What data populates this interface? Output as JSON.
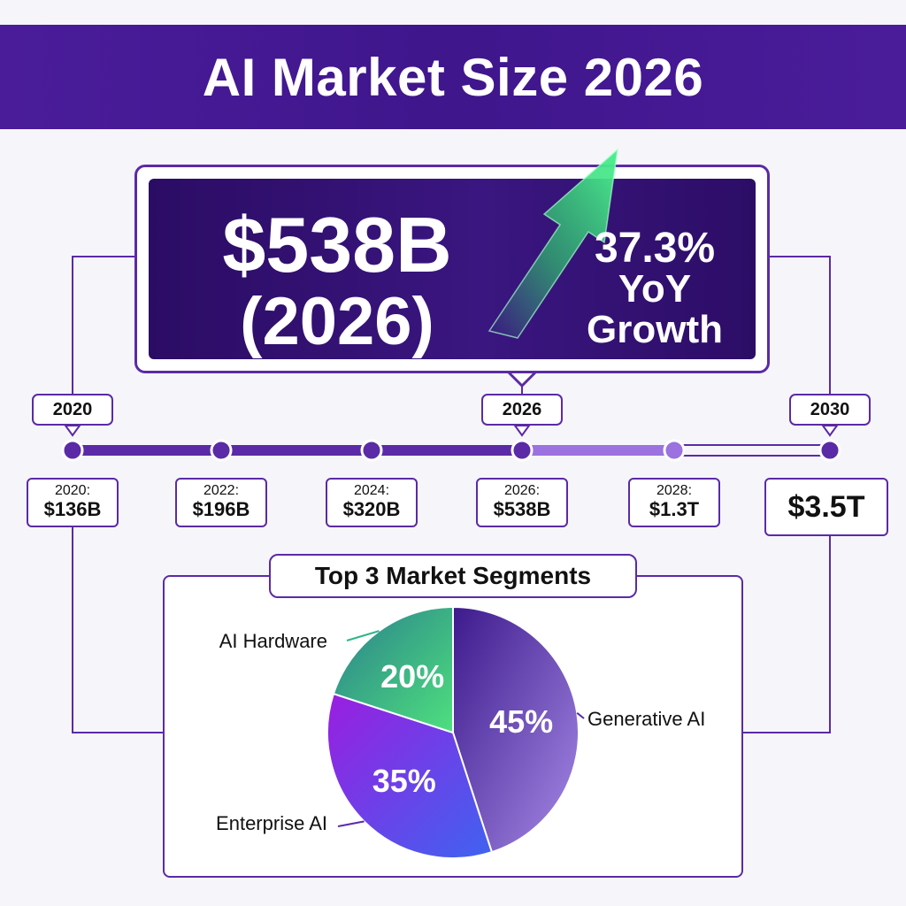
{
  "header": {
    "title": "AI Market Size 2026"
  },
  "hero": {
    "value": "$538B",
    "year": "(2026)",
    "growth_pct": "37.3%",
    "growth_label_1": "YoY",
    "growth_label_2": "Growth"
  },
  "timeline": {
    "callouts": [
      "2020",
      "2026",
      "2030"
    ],
    "points": [
      {
        "year": "2020:",
        "value": "$136B"
      },
      {
        "year": "2022:",
        "value": "$196B"
      },
      {
        "year": "2024:",
        "value": "$320B"
      },
      {
        "year": "2026:",
        "value": "$538B"
      },
      {
        "year": "2028:",
        "value": "$1.3T"
      },
      {
        "year": "",
        "value": "$3.5T"
      }
    ]
  },
  "chart_data": {
    "type": "pie",
    "title": "Top 3 Market Segments",
    "categories": [
      "Generative AI",
      "Enterprise AI",
      "AI Hardware"
    ],
    "values": [
      45,
      35,
      20
    ],
    "value_labels": [
      "45%",
      "35%",
      "20%"
    ],
    "colors": [
      "#6a3fc0",
      "#7a2be0",
      "#2fb58a"
    ],
    "legend": "none"
  },
  "colors": {
    "brand": "#4a1c9a",
    "accent_green": "#34d17a",
    "line": "#5b2aa6"
  }
}
